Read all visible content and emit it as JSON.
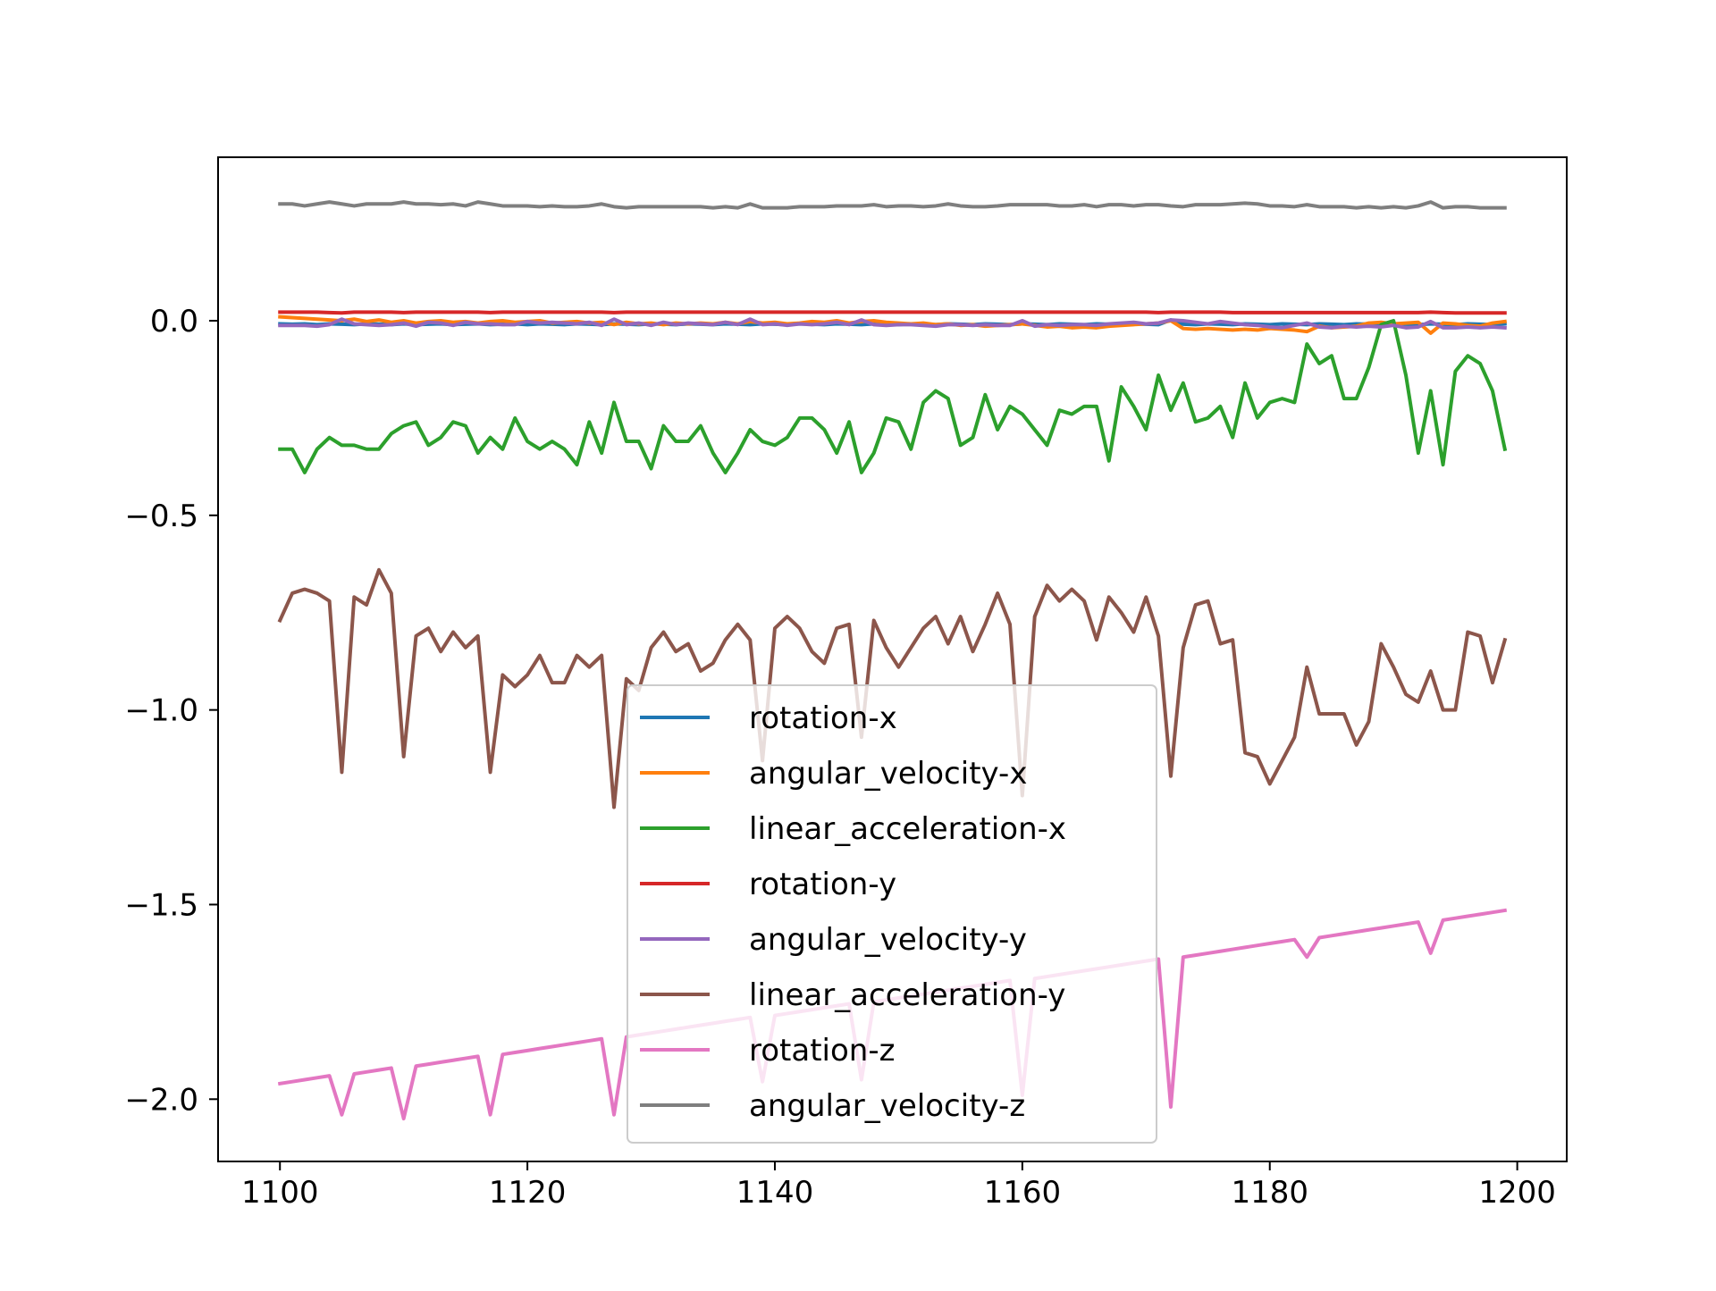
{
  "chart_data": {
    "type": "line",
    "title": "",
    "xlabel": "",
    "ylabel": "",
    "xlim": [
      1095,
      1204
    ],
    "ylim": [
      -2.16,
      0.42
    ],
    "x_ticks": [
      1100,
      1120,
      1140,
      1160,
      1180,
      1200
    ],
    "x_tick_labels": [
      "1100",
      "1120",
      "1140",
      "1160",
      "1180",
      "1200"
    ],
    "y_ticks": [
      0.0,
      -0.5,
      -1.0,
      -1.5,
      -2.0
    ],
    "y_tick_labels": [
      "0.0",
      "−0.5",
      "−1.0",
      "−1.5",
      "−2.0"
    ],
    "grid": false,
    "legend_position": "lower center",
    "x_start": 1100,
    "x_step": 1,
    "series": [
      {
        "name": "rotation-x",
        "color": "#1f77b4",
        "values": [
          -0.008,
          -0.009,
          -0.008,
          -0.01,
          -0.008,
          -0.009,
          -0.01,
          -0.008,
          -0.009,
          -0.01,
          -0.008,
          -0.01,
          -0.009,
          -0.008,
          -0.01,
          -0.009,
          -0.008,
          -0.01,
          -0.009,
          -0.008,
          -0.01,
          -0.008,
          -0.009,
          -0.01,
          -0.008,
          -0.009,
          -0.01,
          -0.008,
          -0.009,
          -0.01,
          -0.008,
          -0.009,
          -0.01,
          -0.008,
          -0.009,
          -0.01,
          -0.008,
          -0.009,
          -0.01,
          -0.008,
          -0.009,
          -0.01,
          -0.008,
          -0.009,
          -0.01,
          -0.008,
          -0.009,
          -0.01,
          -0.008,
          -0.009,
          -0.01,
          -0.008,
          -0.009,
          -0.01,
          -0.008,
          -0.009,
          -0.01,
          -0.008,
          -0.009,
          -0.01,
          -0.008,
          -0.009,
          -0.01,
          -0.008,
          -0.009,
          -0.01,
          -0.008,
          -0.009,
          -0.01,
          -0.008,
          -0.009,
          -0.01,
          0.002,
          -0.009,
          -0.01,
          -0.008,
          -0.009,
          -0.01,
          -0.008,
          -0.009,
          -0.01,
          -0.008,
          -0.009,
          -0.01,
          -0.008,
          -0.009,
          -0.01,
          -0.008,
          -0.009,
          -0.01,
          -0.008,
          -0.009,
          -0.01,
          -0.008,
          -0.009,
          -0.01,
          -0.008,
          -0.009,
          -0.01,
          -0.008
        ]
      },
      {
        "name": "angular_velocity-x",
        "color": "#ff7f0e",
        "values": [
          0.01,
          0.008,
          0.006,
          0.004,
          0.002,
          0.0,
          0.004,
          -0.002,
          0.002,
          -0.004,
          0.0,
          -0.006,
          -0.002,
          0.0,
          -0.004,
          -0.002,
          -0.006,
          -0.002,
          0.0,
          -0.004,
          -0.002,
          0.0,
          -0.006,
          -0.004,
          -0.002,
          -0.006,
          -0.004,
          -0.01,
          -0.004,
          -0.008,
          -0.006,
          -0.01,
          -0.006,
          -0.008,
          -0.006,
          -0.008,
          -0.004,
          -0.008,
          -0.002,
          -0.006,
          -0.004,
          -0.008,
          -0.006,
          -0.002,
          -0.004,
          0.0,
          -0.006,
          -0.002,
          0.0,
          -0.004,
          -0.006,
          -0.008,
          -0.006,
          -0.01,
          -0.008,
          -0.012,
          -0.01,
          -0.014,
          -0.012,
          -0.01,
          -0.008,
          -0.012,
          -0.016,
          -0.014,
          -0.018,
          -0.016,
          -0.018,
          -0.014,
          -0.012,
          -0.01,
          -0.008,
          -0.006,
          0.0,
          -0.02,
          -0.022,
          -0.02,
          -0.022,
          -0.024,
          -0.022,
          -0.024,
          -0.02,
          -0.022,
          -0.024,
          -0.028,
          -0.014,
          -0.018,
          -0.016,
          -0.014,
          -0.006,
          -0.004,
          -0.008,
          -0.006,
          -0.004,
          -0.032,
          -0.006,
          -0.008,
          -0.012,
          -0.014,
          -0.006,
          -0.002
        ]
      },
      {
        "name": "linear_acceleration-x",
        "color": "#2ca02c",
        "values": [
          -0.33,
          -0.33,
          -0.39,
          -0.33,
          -0.3,
          -0.32,
          -0.32,
          -0.33,
          -0.33,
          -0.29,
          -0.27,
          -0.26,
          -0.32,
          -0.3,
          -0.26,
          -0.27,
          -0.34,
          -0.3,
          -0.33,
          -0.25,
          -0.31,
          -0.33,
          -0.31,
          -0.33,
          -0.37,
          -0.26,
          -0.34,
          -0.21,
          -0.31,
          -0.31,
          -0.38,
          -0.27,
          -0.31,
          -0.31,
          -0.27,
          -0.34,
          -0.39,
          -0.34,
          -0.28,
          -0.31,
          -0.32,
          -0.3,
          -0.25,
          -0.25,
          -0.28,
          -0.34,
          -0.26,
          -0.39,
          -0.34,
          -0.25,
          -0.26,
          -0.33,
          -0.21,
          -0.18,
          -0.2,
          -0.32,
          -0.3,
          -0.19,
          -0.28,
          -0.22,
          -0.24,
          -0.28,
          -0.32,
          -0.23,
          -0.24,
          -0.22,
          -0.22,
          -0.36,
          -0.17,
          -0.22,
          -0.28,
          -0.14,
          -0.23,
          -0.16,
          -0.26,
          -0.25,
          -0.22,
          -0.3,
          -0.16,
          -0.25,
          -0.21,
          -0.2,
          -0.21,
          -0.06,
          -0.11,
          -0.09,
          -0.2,
          -0.2,
          -0.12,
          -0.01,
          0.0,
          -0.14,
          -0.34,
          -0.18,
          -0.37,
          -0.13,
          -0.09,
          -0.11,
          -0.18,
          -0.33
        ]
      },
      {
        "name": "rotation-y",
        "color": "#d62728",
        "values": [
          0.022,
          0.022,
          0.022,
          0.022,
          0.021,
          0.02,
          0.022,
          0.022,
          0.022,
          0.022,
          0.021,
          0.022,
          0.022,
          0.022,
          0.022,
          0.022,
          0.022,
          0.021,
          0.022,
          0.022,
          0.022,
          0.022,
          0.022,
          0.022,
          0.022,
          0.022,
          0.022,
          0.021,
          0.022,
          0.022,
          0.022,
          0.022,
          0.022,
          0.022,
          0.022,
          0.022,
          0.022,
          0.022,
          0.022,
          0.022,
          0.022,
          0.022,
          0.022,
          0.022,
          0.022,
          0.022,
          0.022,
          0.022,
          0.022,
          0.022,
          0.022,
          0.022,
          0.022,
          0.022,
          0.022,
          0.022,
          0.022,
          0.022,
          0.022,
          0.022,
          0.022,
          0.022,
          0.022,
          0.022,
          0.022,
          0.022,
          0.022,
          0.022,
          0.022,
          0.022,
          0.022,
          0.021,
          0.022,
          0.022,
          0.022,
          0.022,
          0.022,
          0.021,
          0.021,
          0.021,
          0.021,
          0.021,
          0.021,
          0.021,
          0.021,
          0.021,
          0.021,
          0.021,
          0.021,
          0.021,
          0.021,
          0.021,
          0.021,
          0.022,
          0.021,
          0.02,
          0.02,
          0.02,
          0.02,
          0.02
        ]
      },
      {
        "name": "angular_velocity-y",
        "color": "#9467bd",
        "values": [
          -0.012,
          -0.012,
          -0.012,
          -0.014,
          -0.01,
          0.004,
          -0.008,
          -0.01,
          -0.012,
          -0.01,
          -0.006,
          -0.014,
          -0.004,
          -0.006,
          -0.012,
          -0.004,
          -0.008,
          -0.008,
          -0.01,
          -0.01,
          -0.002,
          -0.006,
          -0.004,
          -0.006,
          -0.008,
          -0.004,
          -0.012,
          0.004,
          -0.01,
          -0.006,
          -0.012,
          -0.004,
          -0.01,
          -0.006,
          -0.008,
          -0.01,
          -0.004,
          -0.01,
          0.004,
          -0.01,
          -0.008,
          -0.012,
          -0.008,
          -0.01,
          -0.008,
          -0.004,
          -0.01,
          0.002,
          -0.01,
          -0.012,
          -0.01,
          -0.01,
          -0.012,
          -0.014,
          -0.01,
          -0.01,
          -0.012,
          -0.01,
          -0.012,
          -0.012,
          0.0,
          -0.014,
          -0.01,
          -0.012,
          -0.01,
          -0.01,
          -0.012,
          -0.008,
          -0.006,
          -0.004,
          -0.008,
          -0.006,
          0.002,
          0.0,
          -0.004,
          -0.008,
          -0.002,
          -0.006,
          -0.01,
          -0.012,
          -0.016,
          -0.018,
          -0.012,
          -0.006,
          -0.016,
          -0.018,
          -0.014,
          -0.016,
          -0.014,
          -0.016,
          -0.012,
          -0.018,
          -0.016,
          -0.002,
          -0.018,
          -0.018,
          -0.016,
          -0.018,
          -0.016,
          -0.018
        ]
      },
      {
        "name": "linear_acceleration-y",
        "color": "#8c564b",
        "values": [
          -0.77,
          -0.7,
          -0.69,
          -0.7,
          -0.72,
          -1.16,
          -0.71,
          -0.73,
          -0.64,
          -0.7,
          -1.12,
          -0.81,
          -0.79,
          -0.85,
          -0.8,
          -0.84,
          -0.81,
          -1.16,
          -0.91,
          -0.94,
          -0.91,
          -0.86,
          -0.93,
          -0.93,
          -0.86,
          -0.89,
          -0.86,
          -1.25,
          -0.92,
          -0.95,
          -0.84,
          -0.8,
          -0.85,
          -0.83,
          -0.9,
          -0.88,
          -0.82,
          -0.78,
          -0.82,
          -1.13,
          -0.79,
          -0.76,
          -0.79,
          -0.85,
          -0.88,
          -0.79,
          -0.78,
          -1.07,
          -0.77,
          -0.84,
          -0.89,
          -0.84,
          -0.79,
          -0.76,
          -0.83,
          -0.76,
          -0.85,
          -0.78,
          -0.7,
          -0.78,
          -1.22,
          -0.76,
          -0.68,
          -0.72,
          -0.69,
          -0.72,
          -0.82,
          -0.71,
          -0.75,
          -0.8,
          -0.71,
          -0.81,
          -1.17,
          -0.84,
          -0.73,
          -0.72,
          -0.83,
          -0.82,
          -1.11,
          -1.12,
          -1.19,
          -1.13,
          -1.07,
          -0.89,
          -1.01,
          -1.01,
          -1.01,
          -1.09,
          -1.03,
          -0.83,
          -0.89,
          -0.96,
          -0.98,
          -0.9,
          -1.0,
          -1.0,
          -0.8,
          -0.81,
          -0.93,
          -0.82
        ]
      },
      {
        "name": "rotation-z",
        "color": "#e377c2",
        "values": [
          -1.96,
          -1.955,
          -1.95,
          -1.945,
          -1.94,
          -2.04,
          -1.935,
          -1.93,
          -1.925,
          -1.92,
          -2.05,
          -1.915,
          -1.91,
          -1.905,
          -1.9,
          -1.895,
          -1.89,
          -2.04,
          -1.885,
          -1.88,
          -1.875,
          -1.87,
          -1.865,
          -1.86,
          -1.855,
          -1.85,
          -1.845,
          -2.04,
          -1.84,
          -1.835,
          -1.83,
          -1.825,
          -1.82,
          -1.815,
          -1.81,
          -1.805,
          -1.8,
          -1.795,
          -1.79,
          -1.955,
          -1.785,
          -1.78,
          -1.775,
          -1.77,
          -1.765,
          -1.76,
          -1.755,
          -1.95,
          -1.75,
          -1.745,
          -1.74,
          -1.735,
          -1.73,
          -1.725,
          -1.72,
          -1.715,
          -1.71,
          -1.705,
          -1.7,
          -1.695,
          -1.99,
          -1.69,
          -1.685,
          -1.68,
          -1.675,
          -1.67,
          -1.665,
          -1.66,
          -1.655,
          -1.65,
          -1.645,
          -1.64,
          -2.02,
          -1.635,
          -1.63,
          -1.625,
          -1.62,
          -1.615,
          -1.61,
          -1.605,
          -1.6,
          -1.595,
          -1.59,
          -1.635,
          -1.585,
          -1.58,
          -1.575,
          -1.57,
          -1.565,
          -1.56,
          -1.555,
          -1.55,
          -1.545,
          -1.625,
          -1.54,
          -1.535,
          -1.53,
          -1.525,
          -1.52,
          -1.515
        ]
      },
      {
        "name": "angular_velocity-z",
        "color": "#7f7f7f",
        "values": [
          0.3,
          0.3,
          0.295,
          0.3,
          0.305,
          0.3,
          0.295,
          0.3,
          0.3,
          0.3,
          0.305,
          0.3,
          0.3,
          0.298,
          0.3,
          0.295,
          0.305,
          0.3,
          0.295,
          0.295,
          0.295,
          0.293,
          0.295,
          0.293,
          0.293,
          0.295,
          0.3,
          0.293,
          0.29,
          0.293,
          0.293,
          0.293,
          0.293,
          0.293,
          0.293,
          0.29,
          0.293,
          0.29,
          0.3,
          0.29,
          0.29,
          0.29,
          0.293,
          0.293,
          0.293,
          0.295,
          0.295,
          0.295,
          0.298,
          0.293,
          0.295,
          0.295,
          0.293,
          0.295,
          0.3,
          0.295,
          0.293,
          0.293,
          0.295,
          0.298,
          0.298,
          0.298,
          0.298,
          0.295,
          0.295,
          0.298,
          0.293,
          0.298,
          0.298,
          0.295,
          0.298,
          0.298,
          0.295,
          0.293,
          0.298,
          0.298,
          0.298,
          0.3,
          0.302,
          0.3,
          0.295,
          0.295,
          0.293,
          0.298,
          0.293,
          0.293,
          0.293,
          0.29,
          0.293,
          0.29,
          0.293,
          0.29,
          0.295,
          0.305,
          0.29,
          0.293,
          0.293,
          0.29,
          0.29,
          0.29
        ]
      }
    ]
  }
}
